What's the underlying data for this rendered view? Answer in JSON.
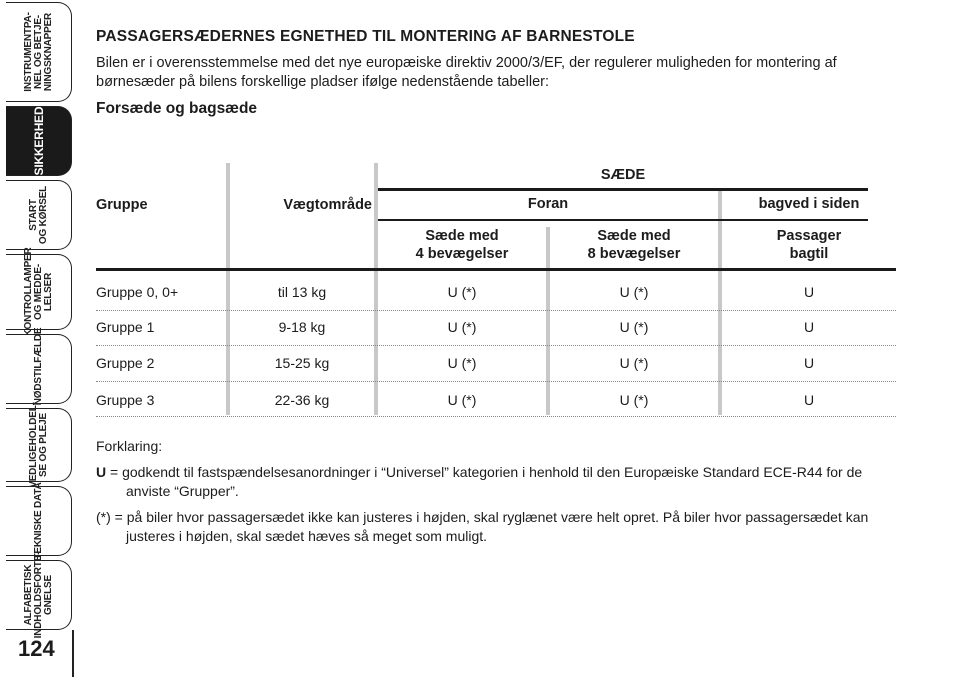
{
  "sidebar": {
    "tabs": [
      {
        "label": "INSTRUMENTPA-\nNEL OG BETJE-\nNINGSKNAPPER",
        "active": false
      },
      {
        "label": "SIKKERHED",
        "active": true
      },
      {
        "label": "START\nOG KØRSEL",
        "active": false
      },
      {
        "label": "KONTROLLAMPER\nOG MEDDE-\nLELSER",
        "active": false
      },
      {
        "label": "I NØDSTILFÆLDE",
        "active": false
      },
      {
        "label": "VEDLIGEHOLDEL-\nSE OG PLEJE",
        "active": false
      },
      {
        "label": "TEKNISKE DATA",
        "active": false
      },
      {
        "label": "ALFABETISK\nINDHOLDSFORTE-\nGNELSE",
        "active": false
      }
    ],
    "page_number": "124"
  },
  "heading": "PASSAGERSÆDERNES EGNETHED TIL MONTERING AF BARNESTOLE",
  "intro": "Bilen er i overensstemmelse med det nye europæiske direktiv 2000/3/EF, der regulerer muligheden for montering af børnesæder på bilens forskellige pladser ifølge nedenstående tabeller:",
  "subheading": "Forsæde og bagsæde",
  "table": {
    "col_group": "Gruppe",
    "col_weight": "Vægtområde",
    "seat_header": "SÆDE",
    "front_header": "Foran",
    "rear_header": "bagved i siden",
    "sub_front_1": "Sæde med\n4 bevægelser",
    "sub_front_2": "Sæde med\n8 bevægelser",
    "sub_rear": "Passager\nbagtil",
    "rows": [
      {
        "group": "Gruppe 0, 0+",
        "weight": "til 13 kg",
        "f1": "U (*)",
        "f2": "U (*)",
        "rear": "U"
      },
      {
        "group": "Gruppe 1",
        "weight": "9-18 kg",
        "f1": "U (*)",
        "f2": "U (*)",
        "rear": "U"
      },
      {
        "group": "Gruppe 2",
        "weight": "15-25 kg",
        "f1": "U (*)",
        "f2": "U (*)",
        "rear": "U"
      },
      {
        "group": "Gruppe 3",
        "weight": "22-36 kg",
        "f1": "U (*)",
        "f2": "U (*)",
        "rear": "U"
      }
    ]
  },
  "legend": {
    "title": "Forklaring:",
    "u_key": "U",
    "u_text": " = godkendt til fastspændelsesanordninger i “Universel” kategorien i henhold til den Europæiske Standard ECE-R44 for de anviste “Grupper”.",
    "star_text": "(*) = på biler hvor passagersædet ikke kan justeres i højden, skal ryglænet være helt opret. På biler hvor passagersædet kan justeres i højden, skal sædet hæves så meget som muligt."
  }
}
